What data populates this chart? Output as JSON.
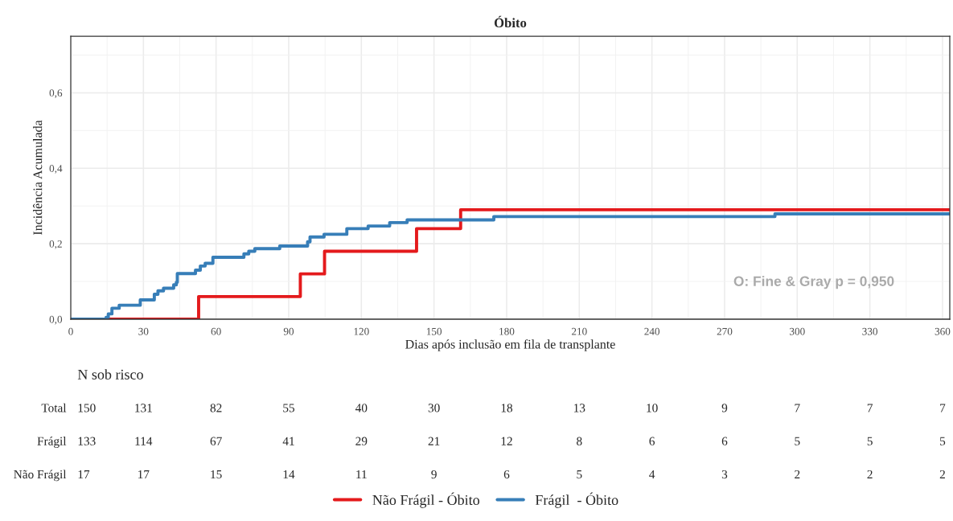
{
  "chart_data": [
    {
      "type": "step",
      "title": "Óbito",
      "xlabel": "Dias após inclusão em fila de transplante",
      "ylabel": "Incidência Acumulada",
      "xlim": [
        0,
        363
      ],
      "xticks": [
        0,
        30,
        60,
        90,
        120,
        150,
        180,
        210,
        240,
        270,
        300,
        330,
        360
      ],
      "ylim": [
        0,
        0.75
      ],
      "yticks": [
        {
          "value": 0,
          "label": "0,0"
        },
        {
          "value": 0.2,
          "label": "0,2"
        },
        {
          "value": 0.4,
          "label": "0,4"
        },
        {
          "value": 0.6,
          "label": "0,6"
        }
      ],
      "grid": true,
      "legend": "bottom",
      "line_style": "solid",
      "series": [
        {
          "name": "Não Frágil - Óbito",
          "color": "#e41a1c",
          "x": [
            0,
            52.8,
            94.8,
            104.8,
            142.8,
            161,
            363
          ],
          "values": [
            0,
            0.06,
            0.12,
            0.18,
            0.24,
            0.29,
            0.29
          ]
        },
        {
          "name": "Frágil  - Óbito",
          "color": "#377eb8",
          "x": [
            0,
            14.6,
            15.5,
            17,
            20,
            28.7,
            34.5,
            36,
            38.3,
            42.5,
            43.6,
            44,
            51.5,
            53.5,
            55.5,
            58.7,
            71.5,
            73.5,
            76,
            86.3,
            97.8,
            98.8,
            104.6,
            114,
            122.8,
            131.7,
            138.9,
            174.7,
            290.8,
            363
          ],
          "values": [
            0,
            0.005,
            0.014,
            0.029,
            0.037,
            0.051,
            0.066,
            0.075,
            0.082,
            0.091,
            0.098,
            0.121,
            0.13,
            0.141,
            0.148,
            0.164,
            0.173,
            0.18,
            0.187,
            0.194,
            0.205,
            0.218,
            0.225,
            0.24,
            0.247,
            0.256,
            0.263,
            0.272,
            0.279,
            0.279
          ]
        }
      ],
      "annotations": [
        "O: Fine & Gray p = 0,950"
      ]
    },
    {
      "type": "heatmap",
      "title": "N sob risco",
      "data_labels": true,
      "categories": [
        null,
        null,
        null,
        null,
        null,
        null,
        null,
        null,
        null,
        null,
        null,
        null,
        null
      ],
      "y_categories": [
        "Total",
        "Frágil",
        "Não Frágil"
      ],
      "cells": [
        [
          150,
          131,
          82,
          55,
          40,
          30,
          18,
          13,
          10,
          9,
          7,
          7,
          7
        ],
        [
          133,
          114,
          67,
          41,
          29,
          21,
          12,
          8,
          6,
          6,
          5,
          5,
          5
        ],
        [
          17,
          17,
          15,
          14,
          11,
          9,
          6,
          5,
          4,
          3,
          2,
          2,
          2
        ]
      ]
    }
  ]
}
